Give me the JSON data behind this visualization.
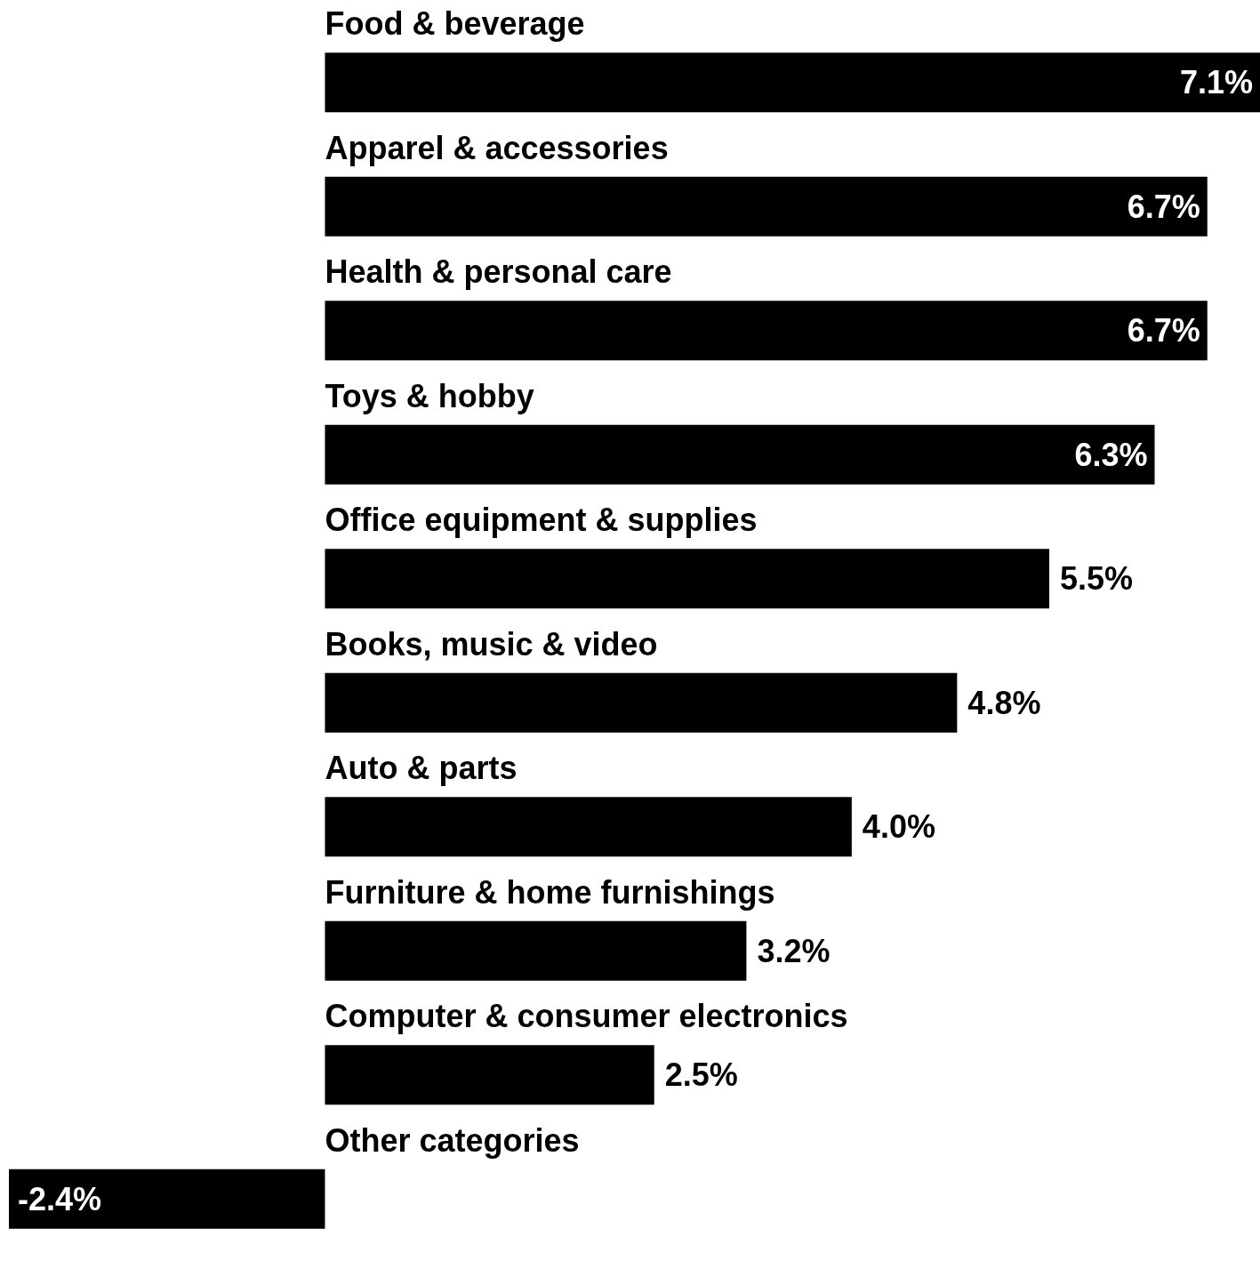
{
  "chart_data": {
    "type": "bar",
    "orientation": "horizontal",
    "categories": [
      "Food & beverage",
      "Apparel & accessories",
      "Health & personal care",
      "Toys & hobby",
      "Office equipment & supplies",
      "Books, music & video",
      "Auto & parts",
      "Furniture & home furnishings",
      "Computer & consumer electronics",
      "Other categories"
    ],
    "values": [
      7.1,
      6.7,
      6.7,
      6.3,
      5.5,
      4.8,
      4.0,
      3.2,
      2.5,
      -2.4
    ],
    "value_labels": [
      "7.1%",
      "6.7%",
      "6.7%",
      "6.3%",
      "5.5%",
      "4.8%",
      "4.0%",
      "3.2%",
      "2.5%",
      "-2.4%"
    ],
    "color": "#000000"
  }
}
